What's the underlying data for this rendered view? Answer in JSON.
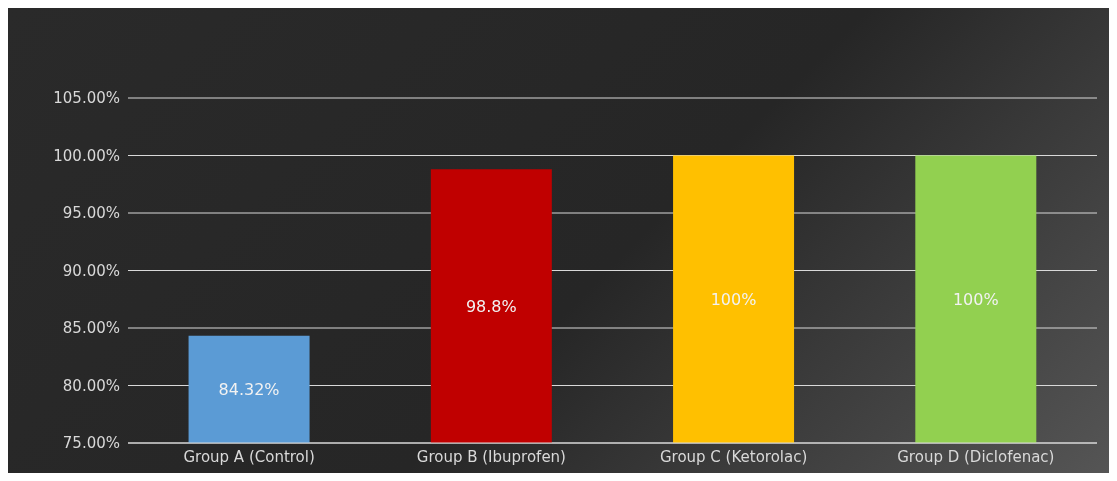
{
  "chart_data": {
    "type": "bar",
    "categories": [
      "Group A (Control)",
      "Group B (Ibuprofen)",
      "Group C (Ketorolac)",
      "Group D (Diclofenac)"
    ],
    "values": [
      84.32,
      98.8,
      100,
      100
    ],
    "colors": [
      "#5b9bd5",
      "#c00000",
      "#ffc000",
      "#92d050"
    ],
    "value_labels": [
      "84.32%",
      "98.8%",
      "100%",
      "100%"
    ],
    "ylim": [
      75,
      105
    ],
    "yticks": [
      {
        "value": 75,
        "label": "75.00%"
      },
      {
        "value": 80,
        "label": "80.00%"
      },
      {
        "value": 85,
        "label": "85.00%"
      },
      {
        "value": 90,
        "label": "90.00%"
      },
      {
        "value": 95,
        "label": "95.00%"
      },
      {
        "value": 100,
        "label": "100.00%"
      },
      {
        "value": 105,
        "label": "105.00%"
      }
    ],
    "grid": "y"
  }
}
